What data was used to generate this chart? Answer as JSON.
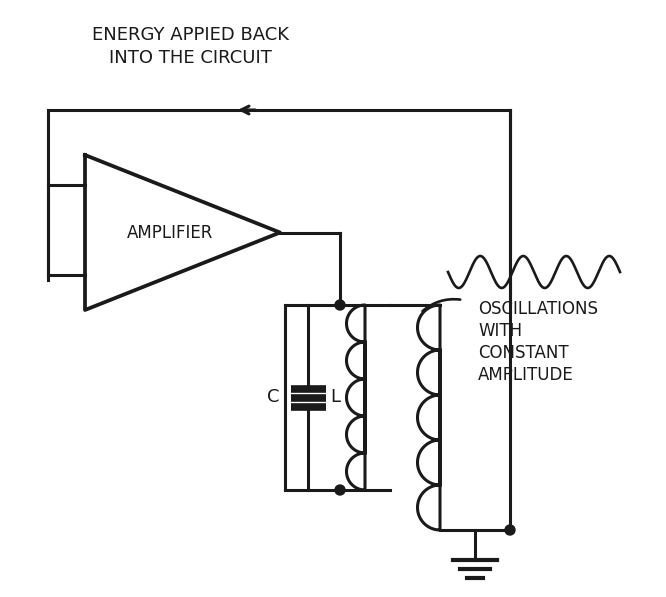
{
  "bg_color": "#f0f0f0",
  "line_color": "#1a1a1a",
  "top_text_line1": "ENERGY APPIED BACK",
  "top_text_line2": "INTO THE CIRCUIT",
  "amplifier_label": "AMPLIFIER",
  "capacitor_label": "C",
  "inductor_label": "L",
  "oscillation_label_line1": "OSCILLATIONS",
  "oscillation_label_line2": "WITH",
  "oscillation_label_line3": "CONSTANT",
  "oscillation_label_line4": "AMPLITUDE",
  "lw": 2.2
}
